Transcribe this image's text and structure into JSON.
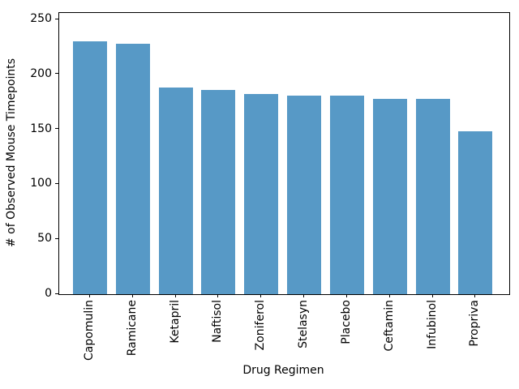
{
  "chart_data": {
    "type": "bar",
    "categories": [
      "Capomulin",
      "Ramicane",
      "Ketapril",
      "Naftisol",
      "Zoniferol",
      "Stelasyn",
      "Placebo",
      "Ceftamin",
      "Infubinol",
      "Propriva"
    ],
    "values": [
      230,
      228,
      188,
      186,
      182,
      181,
      181,
      178,
      178,
      148
    ],
    "title": "",
    "xlabel": "Drug Regimen",
    "ylabel": "# of Observed Mouse Timepoints",
    "ylim": [
      0,
      256
    ],
    "yticks": [
      0,
      50,
      100,
      150,
      200,
      250
    ],
    "bar_color": "#5799c6",
    "axis_color": "#000000",
    "grid": false,
    "legend_position": "none"
  }
}
